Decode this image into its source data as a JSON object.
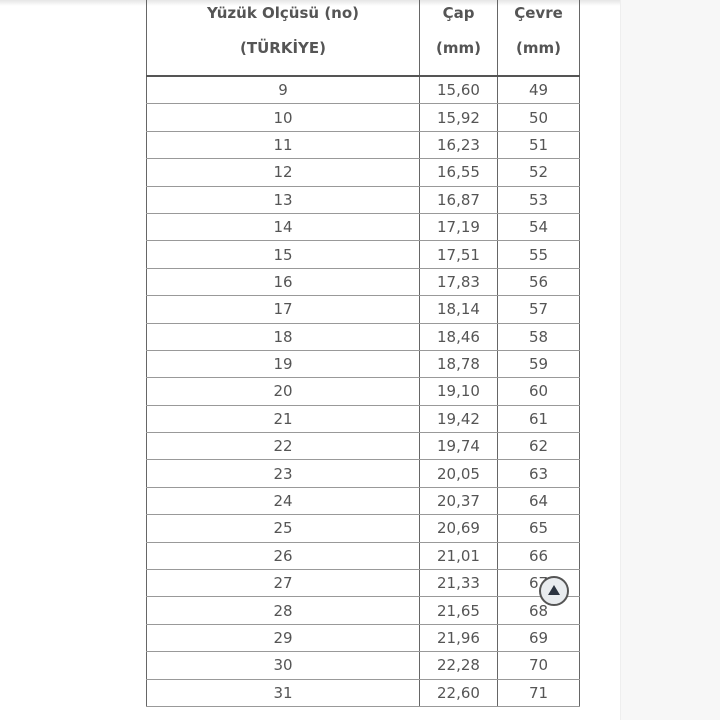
{
  "table": {
    "headers": [
      {
        "line1": "Yüzük Olçüsü (no)",
        "line2": "(TÜRKİYE)"
      },
      {
        "line1": "Çap",
        "line2": "(mm)"
      },
      {
        "line1": "Çevre",
        "line2": "(mm)"
      }
    ],
    "rows": [
      [
        "9",
        "15,60",
        "49"
      ],
      [
        "10",
        "15,92",
        "50"
      ],
      [
        "11",
        "16,23",
        "51"
      ],
      [
        "12",
        "16,55",
        "52"
      ],
      [
        "13",
        "16,87",
        "53"
      ],
      [
        "14",
        "17,19",
        "54"
      ],
      [
        "15",
        "17,51",
        "55"
      ],
      [
        "16",
        "17,83",
        "56"
      ],
      [
        "17",
        "18,14",
        "57"
      ],
      [
        "18",
        "18,46",
        "58"
      ],
      [
        "19",
        "18,78",
        "59"
      ],
      [
        "20",
        "19,10",
        "60"
      ],
      [
        "21",
        "19,42",
        "61"
      ],
      [
        "22",
        "19,74",
        "62"
      ],
      [
        "23",
        "20,05",
        "63"
      ],
      [
        "24",
        "20,37",
        "64"
      ],
      [
        "25",
        "20,69",
        "65"
      ],
      [
        "26",
        "21,01",
        "66"
      ],
      [
        "27",
        "21,33",
        "67"
      ],
      [
        "28",
        "21,65",
        "68"
      ],
      [
        "29",
        "21,96",
        "69"
      ],
      [
        "30",
        "22,28",
        "70"
      ],
      [
        "31",
        "22,60",
        "71"
      ]
    ]
  },
  "scroll_top_button": {
    "icon": "triangle-up-icon"
  }
}
